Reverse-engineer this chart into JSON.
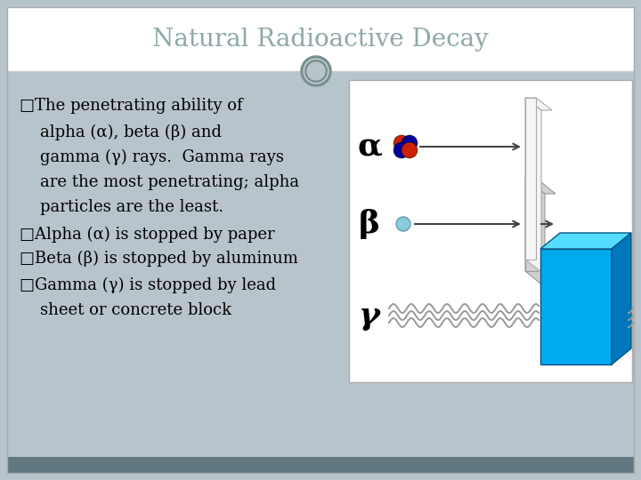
{
  "title": "Natural Radioactive Decay",
  "title_color": "#8fa8a8",
  "slide_bg": "#b8c4cc",
  "header_bg": "#ffffff",
  "content_bg": "#b8c4cc",
  "right_panel_bg": "#ffffff",
  "bottom_bar_color": "#607880",
  "bullet_lines": [
    "□The penetrating ability of",
    "    alpha (α), beta (β) and",
    "    gamma (γ) rays.  Gamma rays",
    "    are the most penetrating; alpha",
    "    particles are the least.",
    "□Alpha (α) is stopped by paper",
    "□Beta (β) is stopped by aluminum",
    "□Gamma (γ) is stopped by lead",
    "    sheet or concrete block"
  ],
  "text_color": "#000000",
  "text_fontsize": 13,
  "alpha_label": "α",
  "beta_label": "β",
  "gamma_label": "γ",
  "label_fontsize": 24,
  "arrow_color": "#444444",
  "wavy_color": "#999999",
  "alpha_r_color": "#cc2200",
  "alpha_b_color": "#000099",
  "beta_color": "#88ccdd",
  "circle_color": "#7a9090",
  "paper_face": "#f5f5f5",
  "paper_edge": "#aaaaaa",
  "alum_face": "#d0d0d0",
  "alum_edge": "#999999",
  "lead_front": "#00aaee",
  "lead_top": "#55ddff",
  "lead_right": "#0077bb",
  "lead_edge": "#005588"
}
